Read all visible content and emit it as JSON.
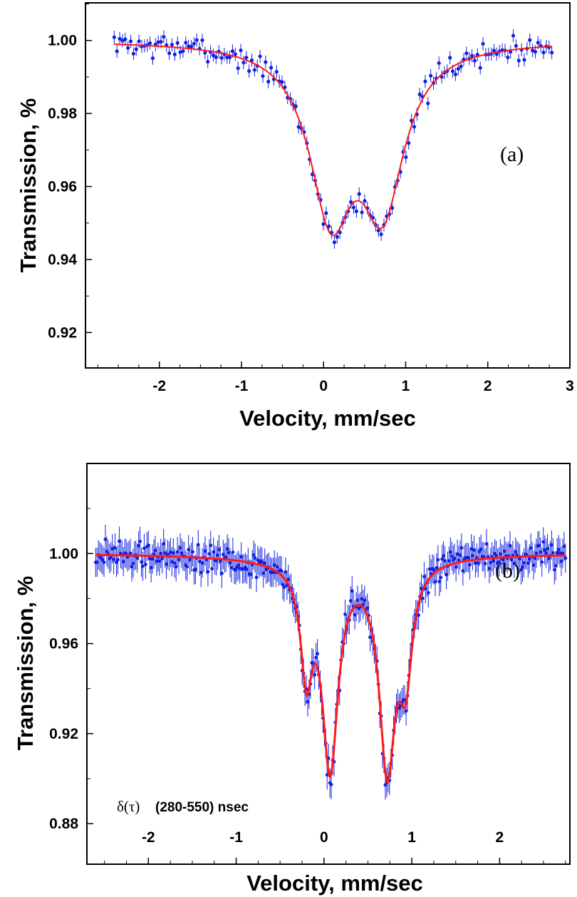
{
  "colors": {
    "data": "#1020e0",
    "fit": "#ff1a1a",
    "axis": "#000000"
  },
  "chart_data": [
    {
      "id": "a",
      "type": "scatter",
      "panel_label": "(a)",
      "xlabel": "Velocity, mm/sec",
      "ylabel": "Transmission, %",
      "xlim": [
        -2.9,
        3.0
      ],
      "ylim": [
        0.9103,
        1.0103
      ],
      "xticks": [
        -2,
        -1,
        0,
        1,
        2,
        3
      ],
      "xtick_labels": [
        "-2",
        "-1",
        "0",
        "1",
        "2",
        "3"
      ],
      "yticks": [
        0.92,
        0.94,
        0.96,
        0.98,
        1.0
      ],
      "ytick_labels": [
        "0.92",
        "0.94",
        "0.96",
        "0.98",
        "1.00"
      ],
      "x_range": [
        -2.55,
        2.78
      ],
      "n_points": 160,
      "noise": 0.0032,
      "error_bar": 0.0018,
      "marker_radius": 2.6,
      "fit_lines": [
        {
          "center": 0.09,
          "depth": 0.0445,
          "hwhm": 0.32
        },
        {
          "center": 0.72,
          "depth": 0.042,
          "hwhm": 0.32
        }
      ],
      "grid": false,
      "legend": "none"
    },
    {
      "id": "b",
      "type": "scatter",
      "panel_label": "(b)",
      "xlabel": "Velocity, mm/sec",
      "ylabel": "Transmission, %",
      "xlim": [
        -2.7,
        2.8
      ],
      "ylim": [
        0.862,
        1.04
      ],
      "xticks": [
        -2,
        -1,
        0,
        1,
        2
      ],
      "xtick_labels": [
        "-2",
        "-1",
        "0",
        "1",
        "2"
      ],
      "yticks": [
        0.88,
        0.92,
        0.96,
        1.0
      ],
      "ytick_labels": [
        "0.88",
        "0.92",
        "0.96",
        "1.00"
      ],
      "x_range": [
        -2.6,
        2.75
      ],
      "n_points": 340,
      "noise": 0.0068,
      "error_bar": 0.0065,
      "marker_radius": 2.4,
      "fit_lines": [
        {
          "center": -0.2,
          "depth": 0.046,
          "hwhm": 0.08
        },
        {
          "center": 0.07,
          "depth": 0.09,
          "hwhm": 0.11
        },
        {
          "center": 0.72,
          "depth": 0.09,
          "hwhm": 0.11
        },
        {
          "center": 0.93,
          "depth": 0.045,
          "hwhm": 0.09
        },
        {
          "center": 0.0,
          "depth": 0.0025,
          "hwhm": 1.0
        }
      ],
      "annotation_symbol": "δ(τ)",
      "annotation": "(280-550) nsec",
      "grid": false,
      "legend": "none"
    }
  ]
}
